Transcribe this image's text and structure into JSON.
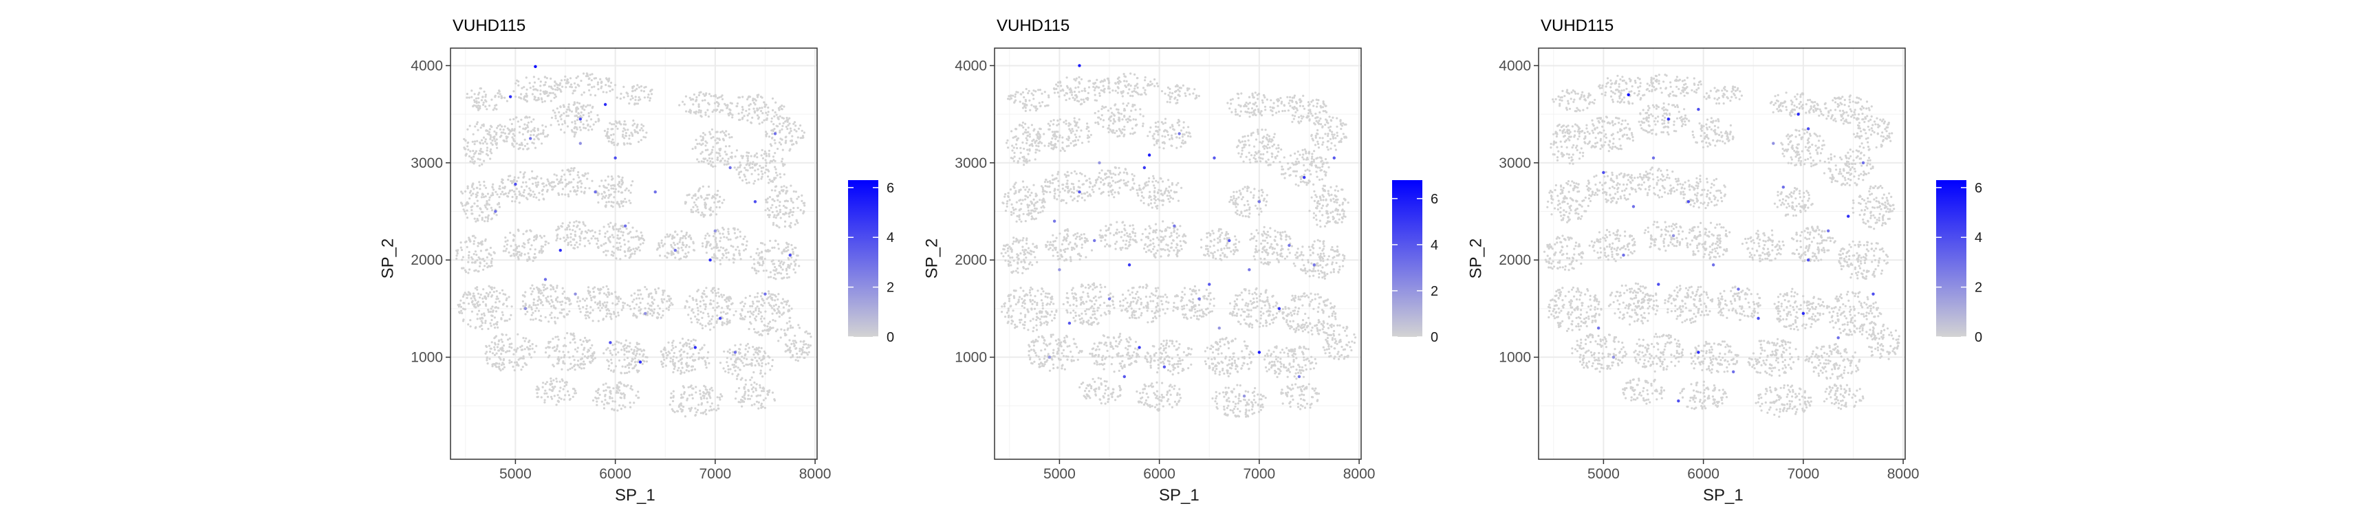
{
  "chart_data": [
    {
      "type": "scatter",
      "title": "VUHD115",
      "xlabel": "SP_1",
      "ylabel": "SP_2",
      "xlim": [
        4350,
        8020
      ],
      "ylim": [
        -50,
        4180
      ],
      "x_ticks": [
        5000,
        6000,
        7000,
        8000
      ],
      "y_ticks": [
        1000,
        2000,
        3000,
        4000
      ],
      "grid": true,
      "color_scale": {
        "low": "#d3d3d3",
        "high": "#0000ff",
        "min": 0,
        "max": 6.3,
        "ticks": [
          0,
          2,
          4,
          6
        ]
      },
      "legend_position": "right",
      "highlighted_points": [
        {
          "x": 5200,
          "y": 3990,
          "v": 6
        },
        {
          "x": 4950,
          "y": 3680,
          "v": 5
        },
        {
          "x": 5650,
          "y": 3450,
          "v": 4
        },
        {
          "x": 5900,
          "y": 3600,
          "v": 5
        },
        {
          "x": 6000,
          "y": 3050,
          "v": 4
        },
        {
          "x": 5150,
          "y": 3250,
          "v": 3
        },
        {
          "x": 5000,
          "y": 2780,
          "v": 4
        },
        {
          "x": 4800,
          "y": 2500,
          "v": 3
        },
        {
          "x": 5800,
          "y": 2700,
          "v": 3
        },
        {
          "x": 5450,
          "y": 2100,
          "v": 5
        },
        {
          "x": 5300,
          "y": 1800,
          "v": 3
        },
        {
          "x": 5100,
          "y": 1500,
          "v": 2
        },
        {
          "x": 5950,
          "y": 1150,
          "v": 4
        },
        {
          "x": 6250,
          "y": 950,
          "v": 5
        },
        {
          "x": 6600,
          "y": 2100,
          "v": 3
        },
        {
          "x": 6950,
          "y": 2000,
          "v": 5
        },
        {
          "x": 7150,
          "y": 2950,
          "v": 3
        },
        {
          "x": 7400,
          "y": 2600,
          "v": 4
        },
        {
          "x": 7500,
          "y": 1650,
          "v": 3
        },
        {
          "x": 7050,
          "y": 1400,
          "v": 4
        },
        {
          "x": 6800,
          "y": 1100,
          "v": 5
        },
        {
          "x": 7200,
          "y": 1050,
          "v": 3
        },
        {
          "x": 7750,
          "y": 2050,
          "v": 4
        },
        {
          "x": 7600,
          "y": 3300,
          "v": 3
        },
        {
          "x": 6400,
          "y": 2700,
          "v": 3
        },
        {
          "x": 5600,
          "y": 1650,
          "v": 2
        },
        {
          "x": 6100,
          "y": 2350,
          "v": 3
        },
        {
          "x": 7000,
          "y": 2300,
          "v": 2
        },
        {
          "x": 5650,
          "y": 3200,
          "v": 2
        },
        {
          "x": 6300,
          "y": 1450,
          "v": 2
        }
      ]
    },
    {
      "type": "scatter",
      "title": "VUHD115",
      "xlabel": "SP_1",
      "ylabel": "SP_2",
      "xlim": [
        4350,
        8020
      ],
      "ylim": [
        -50,
        4180
      ],
      "x_ticks": [
        5000,
        6000,
        7000,
        8000
      ],
      "y_ticks": [
        1000,
        2000,
        3000,
        4000
      ],
      "grid": true,
      "color_scale": {
        "low": "#d3d3d3",
        "high": "#0000ff",
        "min": 0,
        "max": 6.8,
        "ticks": [
          0,
          2,
          4,
          6
        ]
      },
      "legend_position": "right",
      "highlighted_points": [
        {
          "x": 5200,
          "y": 4000,
          "v": 6
        },
        {
          "x": 5900,
          "y": 3080,
          "v": 6
        },
        {
          "x": 5850,
          "y": 2950,
          "v": 5
        },
        {
          "x": 6550,
          "y": 3050,
          "v": 4
        },
        {
          "x": 7450,
          "y": 2850,
          "v": 5
        },
        {
          "x": 7000,
          "y": 2600,
          "v": 3
        },
        {
          "x": 5200,
          "y": 2700,
          "v": 4
        },
        {
          "x": 4950,
          "y": 2400,
          "v": 3
        },
        {
          "x": 5700,
          "y": 1950,
          "v": 5
        },
        {
          "x": 5500,
          "y": 1600,
          "v": 3
        },
        {
          "x": 5100,
          "y": 1350,
          "v": 4
        },
        {
          "x": 5800,
          "y": 1100,
          "v": 5
        },
        {
          "x": 6050,
          "y": 900,
          "v": 4
        },
        {
          "x": 6400,
          "y": 1600,
          "v": 3
        },
        {
          "x": 6500,
          "y": 1750,
          "v": 4
        },
        {
          "x": 6900,
          "y": 1900,
          "v": 3
        },
        {
          "x": 7200,
          "y": 1500,
          "v": 5
        },
        {
          "x": 7550,
          "y": 1950,
          "v": 3
        },
        {
          "x": 7000,
          "y": 1050,
          "v": 6
        },
        {
          "x": 7400,
          "y": 800,
          "v": 3
        },
        {
          "x": 7750,
          "y": 3050,
          "v": 4
        },
        {
          "x": 6200,
          "y": 3300,
          "v": 3
        },
        {
          "x": 5400,
          "y": 3000,
          "v": 2
        },
        {
          "x": 6700,
          "y": 2200,
          "v": 4
        },
        {
          "x": 5000,
          "y": 1900,
          "v": 2
        },
        {
          "x": 6150,
          "y": 2350,
          "v": 3
        },
        {
          "x": 5650,
          "y": 800,
          "v": 4
        },
        {
          "x": 6600,
          "y": 1300,
          "v": 2
        },
        {
          "x": 7300,
          "y": 2150,
          "v": 3
        },
        {
          "x": 4900,
          "y": 1000,
          "v": 2
        },
        {
          "x": 5350,
          "y": 2200,
          "v": 3
        },
        {
          "x": 6850,
          "y": 600,
          "v": 2
        }
      ]
    },
    {
      "type": "scatter",
      "title": "VUHD115",
      "xlabel": "SP_1",
      "ylabel": "SP_2",
      "xlim": [
        4350,
        8020
      ],
      "ylim": [
        -50,
        4180
      ],
      "x_ticks": [
        5000,
        6000,
        7000,
        8000
      ],
      "y_ticks": [
        1000,
        2000,
        3000,
        4000
      ],
      "grid": true,
      "color_scale": {
        "low": "#d3d3d3",
        "high": "#0000ff",
        "min": 0,
        "max": 6.3,
        "ticks": [
          0,
          2,
          4,
          6
        ]
      },
      "legend_position": "right",
      "highlighted_points": [
        {
          "x": 5250,
          "y": 3700,
          "v": 6
        },
        {
          "x": 5650,
          "y": 3450,
          "v": 5
        },
        {
          "x": 5950,
          "y": 3550,
          "v": 4
        },
        {
          "x": 6950,
          "y": 3500,
          "v": 5
        },
        {
          "x": 7050,
          "y": 3350,
          "v": 4
        },
        {
          "x": 5500,
          "y": 3050,
          "v": 3
        },
        {
          "x": 5000,
          "y": 2900,
          "v": 4
        },
        {
          "x": 5300,
          "y": 2550,
          "v": 3
        },
        {
          "x": 5850,
          "y": 2600,
          "v": 4
        },
        {
          "x": 6800,
          "y": 2750,
          "v": 3
        },
        {
          "x": 7450,
          "y": 2450,
          "v": 5
        },
        {
          "x": 7050,
          "y": 2000,
          "v": 4
        },
        {
          "x": 5200,
          "y": 2050,
          "v": 3
        },
        {
          "x": 5550,
          "y": 1750,
          "v": 4
        },
        {
          "x": 6350,
          "y": 1700,
          "v": 3
        },
        {
          "x": 6550,
          "y": 1400,
          "v": 4
        },
        {
          "x": 7000,
          "y": 1450,
          "v": 5
        },
        {
          "x": 7350,
          "y": 1200,
          "v": 3
        },
        {
          "x": 7700,
          "y": 1650,
          "v": 4
        },
        {
          "x": 5950,
          "y": 1050,
          "v": 5
        },
        {
          "x": 6300,
          "y": 850,
          "v": 3
        },
        {
          "x": 5750,
          "y": 550,
          "v": 4
        },
        {
          "x": 4950,
          "y": 1300,
          "v": 3
        },
        {
          "x": 5700,
          "y": 2250,
          "v": 2
        },
        {
          "x": 6100,
          "y": 1950,
          "v": 3
        },
        {
          "x": 7600,
          "y": 3000,
          "v": 3
        },
        {
          "x": 6700,
          "y": 3200,
          "v": 2
        },
        {
          "x": 5100,
          "y": 1000,
          "v": 2
        },
        {
          "x": 7250,
          "y": 2300,
          "v": 3
        }
      ]
    }
  ]
}
